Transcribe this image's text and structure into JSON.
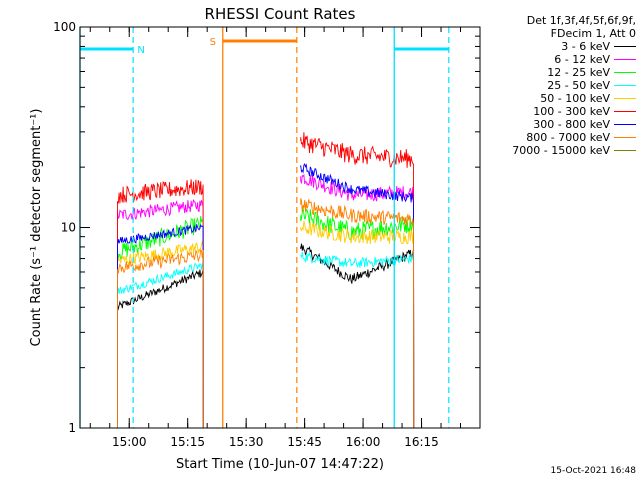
{
  "chart_data": {
    "type": "line",
    "title": "RHESSI Count Rates",
    "xlabel": "Start Time (10-Jun-07 14:47:22)",
    "ylabel": "Count Rate (s⁻¹ detector segment⁻¹)",
    "y_scale": "log",
    "ylim": [
      1,
      100
    ],
    "y_ticks": [
      {
        "v": 1,
        "label": "1"
      },
      {
        "v": 10,
        "label": "10"
      },
      {
        "v": 100,
        "label": "100"
      }
    ],
    "xlim": [
      "14:47:22",
      "16:30:00"
    ],
    "x_ticks": [
      {
        "v": "15:00",
        "label": "15:00"
      },
      {
        "v": "15:15",
        "label": "15:15"
      },
      {
        "v": "15:30",
        "label": "15:30"
      },
      {
        "v": "15:45",
        "label": "15:45"
      },
      {
        "v": "16:00",
        "label": "16:00"
      },
      {
        "v": "16:15",
        "label": "16:15"
      }
    ],
    "segments": [
      {
        "start": "14:57",
        "end": "15:19"
      },
      {
        "start": "15:44",
        "end": "16:13"
      }
    ],
    "series": [
      {
        "name": "3 - 6 keV",
        "color": "#000000",
        "seg1": {
          "start": 4.0,
          "end": 6.0
        },
        "seg2": {
          "start": 8.0,
          "mid": 5.5,
          "end": 7.5
        }
      },
      {
        "name": "6 - 12 keV",
        "color": "#ff00ff",
        "seg1": {
          "start": 11.5,
          "end": 13.0
        },
        "seg2": {
          "start": 18.0,
          "mid": 14.5,
          "end": 15.0
        }
      },
      {
        "name": "12 - 25 keV",
        "color": "#00ff00",
        "seg1": {
          "start": 7.5,
          "end": 10.5
        },
        "seg2": {
          "start": 11.5,
          "mid": 9.5,
          "end": 10.5
        }
      },
      {
        "name": "25 - 50 keV",
        "color": "#00ffff",
        "seg1": {
          "start": 4.8,
          "end": 6.5
        },
        "seg2": {
          "start": 7.2,
          "mid": 6.6,
          "end": 7.0
        }
      },
      {
        "name": "50 - 100 keV",
        "color": "#ffcc00",
        "seg1": {
          "start": 6.8,
          "end": 8.0
        },
        "seg2": {
          "start": 10.0,
          "mid": 9.0,
          "end": 9.0
        }
      },
      {
        "name": "100 - 300 keV",
        "color": "#ff0000",
        "seg1": {
          "start": 14.5,
          "end": 16.0
        },
        "seg2": {
          "start": 27.0,
          "mid": 23.0,
          "end": 22.0
        }
      },
      {
        "name": "300 - 800 keV",
        "color": "#0000ff",
        "seg1": {
          "start": 8.5,
          "end": 10.0
        },
        "seg2": {
          "start": 20.0,
          "mid": 15.5,
          "end": 14.0
        }
      },
      {
        "name": "800 - 7000 keV",
        "color": "#ff8000",
        "seg1": {
          "start": 6.3,
          "end": 7.3
        },
        "seg2": {
          "start": 13.0,
          "mid": 11.5,
          "end": 11.0
        }
      },
      {
        "name": "7000 - 15000 keV",
        "color": "#808000",
        "seg1": {
          "start": null,
          "end": null
        },
        "seg2": {
          "start": null,
          "mid": null,
          "end": null
        }
      }
    ],
    "legend_header": [
      "Det 1f,3f,4f,5f,6f,9f,",
      "FDecim 1, Att 0"
    ],
    "legend_position": "outside-right",
    "annotations": [
      {
        "text": "N",
        "color": "#00e0ff",
        "kind": "night",
        "intervals": [
          {
            "start": "14:47:22",
            "end": "15:01"
          },
          {
            "start": "16:08",
            "end": "16:22"
          }
        ]
      },
      {
        "text": "S",
        "color": "#ff8000",
        "kind": "saa",
        "intervals": [
          {
            "start": "15:24",
            "end": "15:43"
          }
        ]
      }
    ],
    "timestamp": "15-Oct-2021 16:48"
  }
}
